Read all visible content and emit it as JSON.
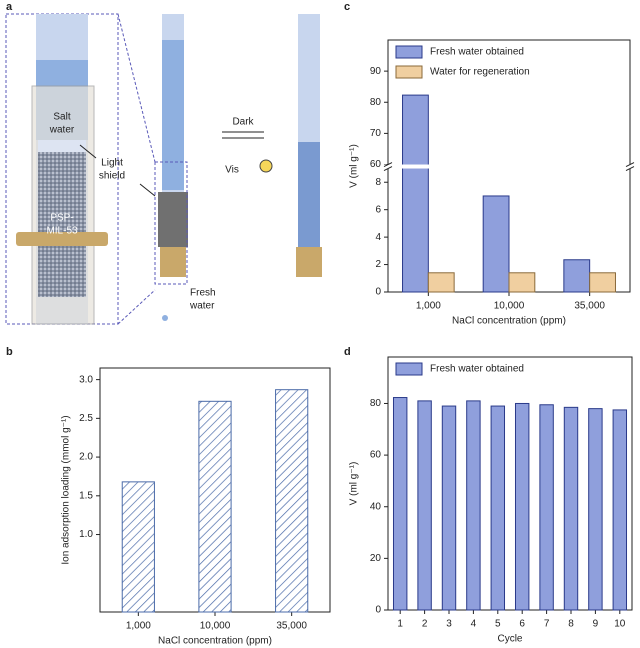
{
  "diagram": {
    "panel": "a",
    "salt_water": [
      "Salt",
      "water"
    ],
    "light_shield": [
      "Light",
      "shield"
    ],
    "adsorbent": [
      "PSP-",
      "MIL-53"
    ],
    "fresh_water": [
      "Fresh",
      "water"
    ],
    "dark": "Dark",
    "vis": "Vis"
  },
  "chart_data": [
    {
      "type": "bar",
      "panel": "b",
      "xlabel": "NaCl concentration (ppm)",
      "ylabel": "Ion adsorption loading (mmol g⁻¹)",
      "categories": [
        "1,000",
        "10,000",
        "35,000"
      ],
      "values": [
        1.68,
        2.72,
        2.87
      ],
      "color": "#4a6aa8",
      "hatch": true,
      "ylim": [
        0,
        3.15
      ],
      "yticks": [
        {
          "value": 1,
          "label": "1.0"
        },
        1.5,
        {
          "value": 2,
          "label": "2.0"
        },
        2.5,
        {
          "value": 3,
          "label": "3.0"
        }
      ]
    },
    {
      "type": "bar",
      "panel": "c",
      "xlabel": "NaCl concentration (ppm)",
      "ylabel": "V (ml g⁻¹)",
      "categories": [
        "1,000",
        "10,000",
        "35,000"
      ],
      "series": [
        {
          "name": "Fresh water obtained",
          "color": "#8f9fdc",
          "values": [
            82.3,
            7.0,
            2.35
          ]
        },
        {
          "name": "Water for regeneration",
          "color": "#f0cfa0",
          "values": [
            1.4,
            1.4,
            1.4
          ]
        }
      ],
      "ylim": [
        0,
        100
      ],
      "broken_axis": [
        9,
        60
      ],
      "yticks": [
        0,
        2,
        4,
        6,
        8,
        60,
        70,
        80,
        90
      ],
      "legend": "top-left"
    },
    {
      "type": "bar",
      "panel": "d",
      "xlabel": "Cycle",
      "ylabel": "V (ml g⁻¹)",
      "categories": [
        "1",
        "2",
        "3",
        "4",
        "5",
        "6",
        "7",
        "8",
        "9",
        "10"
      ],
      "series": [
        {
          "name": "Fresh water obtained",
          "color": "#8f9fdc",
          "values": [
            82.3,
            81,
            79,
            81,
            79,
            80,
            79.5,
            78.5,
            78,
            77.5
          ]
        }
      ],
      "ylim": [
        0,
        98
      ],
      "yticks": [
        0,
        20,
        40,
        60,
        80
      ],
      "legend": "top-left"
    }
  ]
}
